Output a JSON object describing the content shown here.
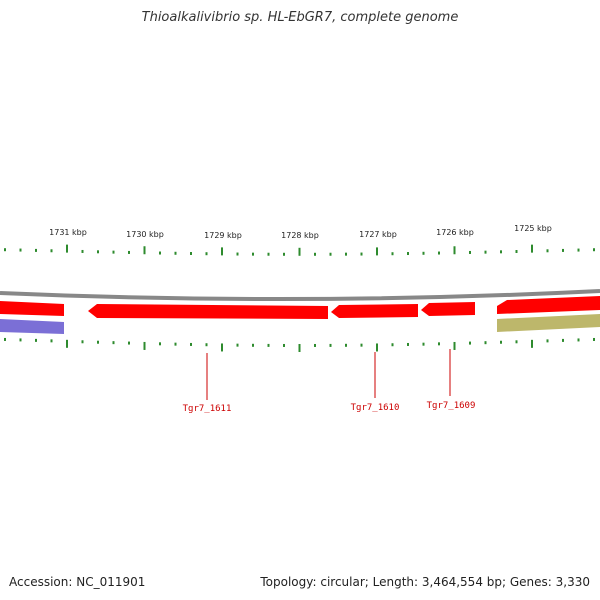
{
  "title": "Thioalkalivibrio sp. HL-EbGR7, complete genome",
  "footer": {
    "accession": "Accession: NC_011901",
    "stats": "Topology: circular; Length: 3,464,554 bp; Genes: 3,330"
  },
  "ticks": [
    {
      "label": "1731 kbp",
      "kbp": 1731
    },
    {
      "label": "1730 kbp",
      "kbp": 1730
    },
    {
      "label": "1729 kbp",
      "kbp": 1729
    },
    {
      "label": "1728 kbp",
      "kbp": 1728
    },
    {
      "label": "1727 kbp",
      "kbp": 1727
    },
    {
      "label": "1726 kbp",
      "kbp": 1726
    },
    {
      "label": "1725 kbp",
      "kbp": 1725
    }
  ],
  "genes": [
    {
      "name": "Tgr7_1611",
      "strand": "minus",
      "color": "#ff0000"
    },
    {
      "name": "Tgr7_1610",
      "strand": "minus",
      "color": "#ff0000"
    },
    {
      "name": "Tgr7_1609",
      "strand": "minus",
      "color": "#ff0000"
    }
  ],
  "colors": {
    "backbone": "#888888",
    "gene": "#ff0000",
    "blue_track": "#7b6fd6",
    "olive_track": "#bdb76b",
    "tick": "#2e8b2e",
    "label": "#cc0000"
  }
}
